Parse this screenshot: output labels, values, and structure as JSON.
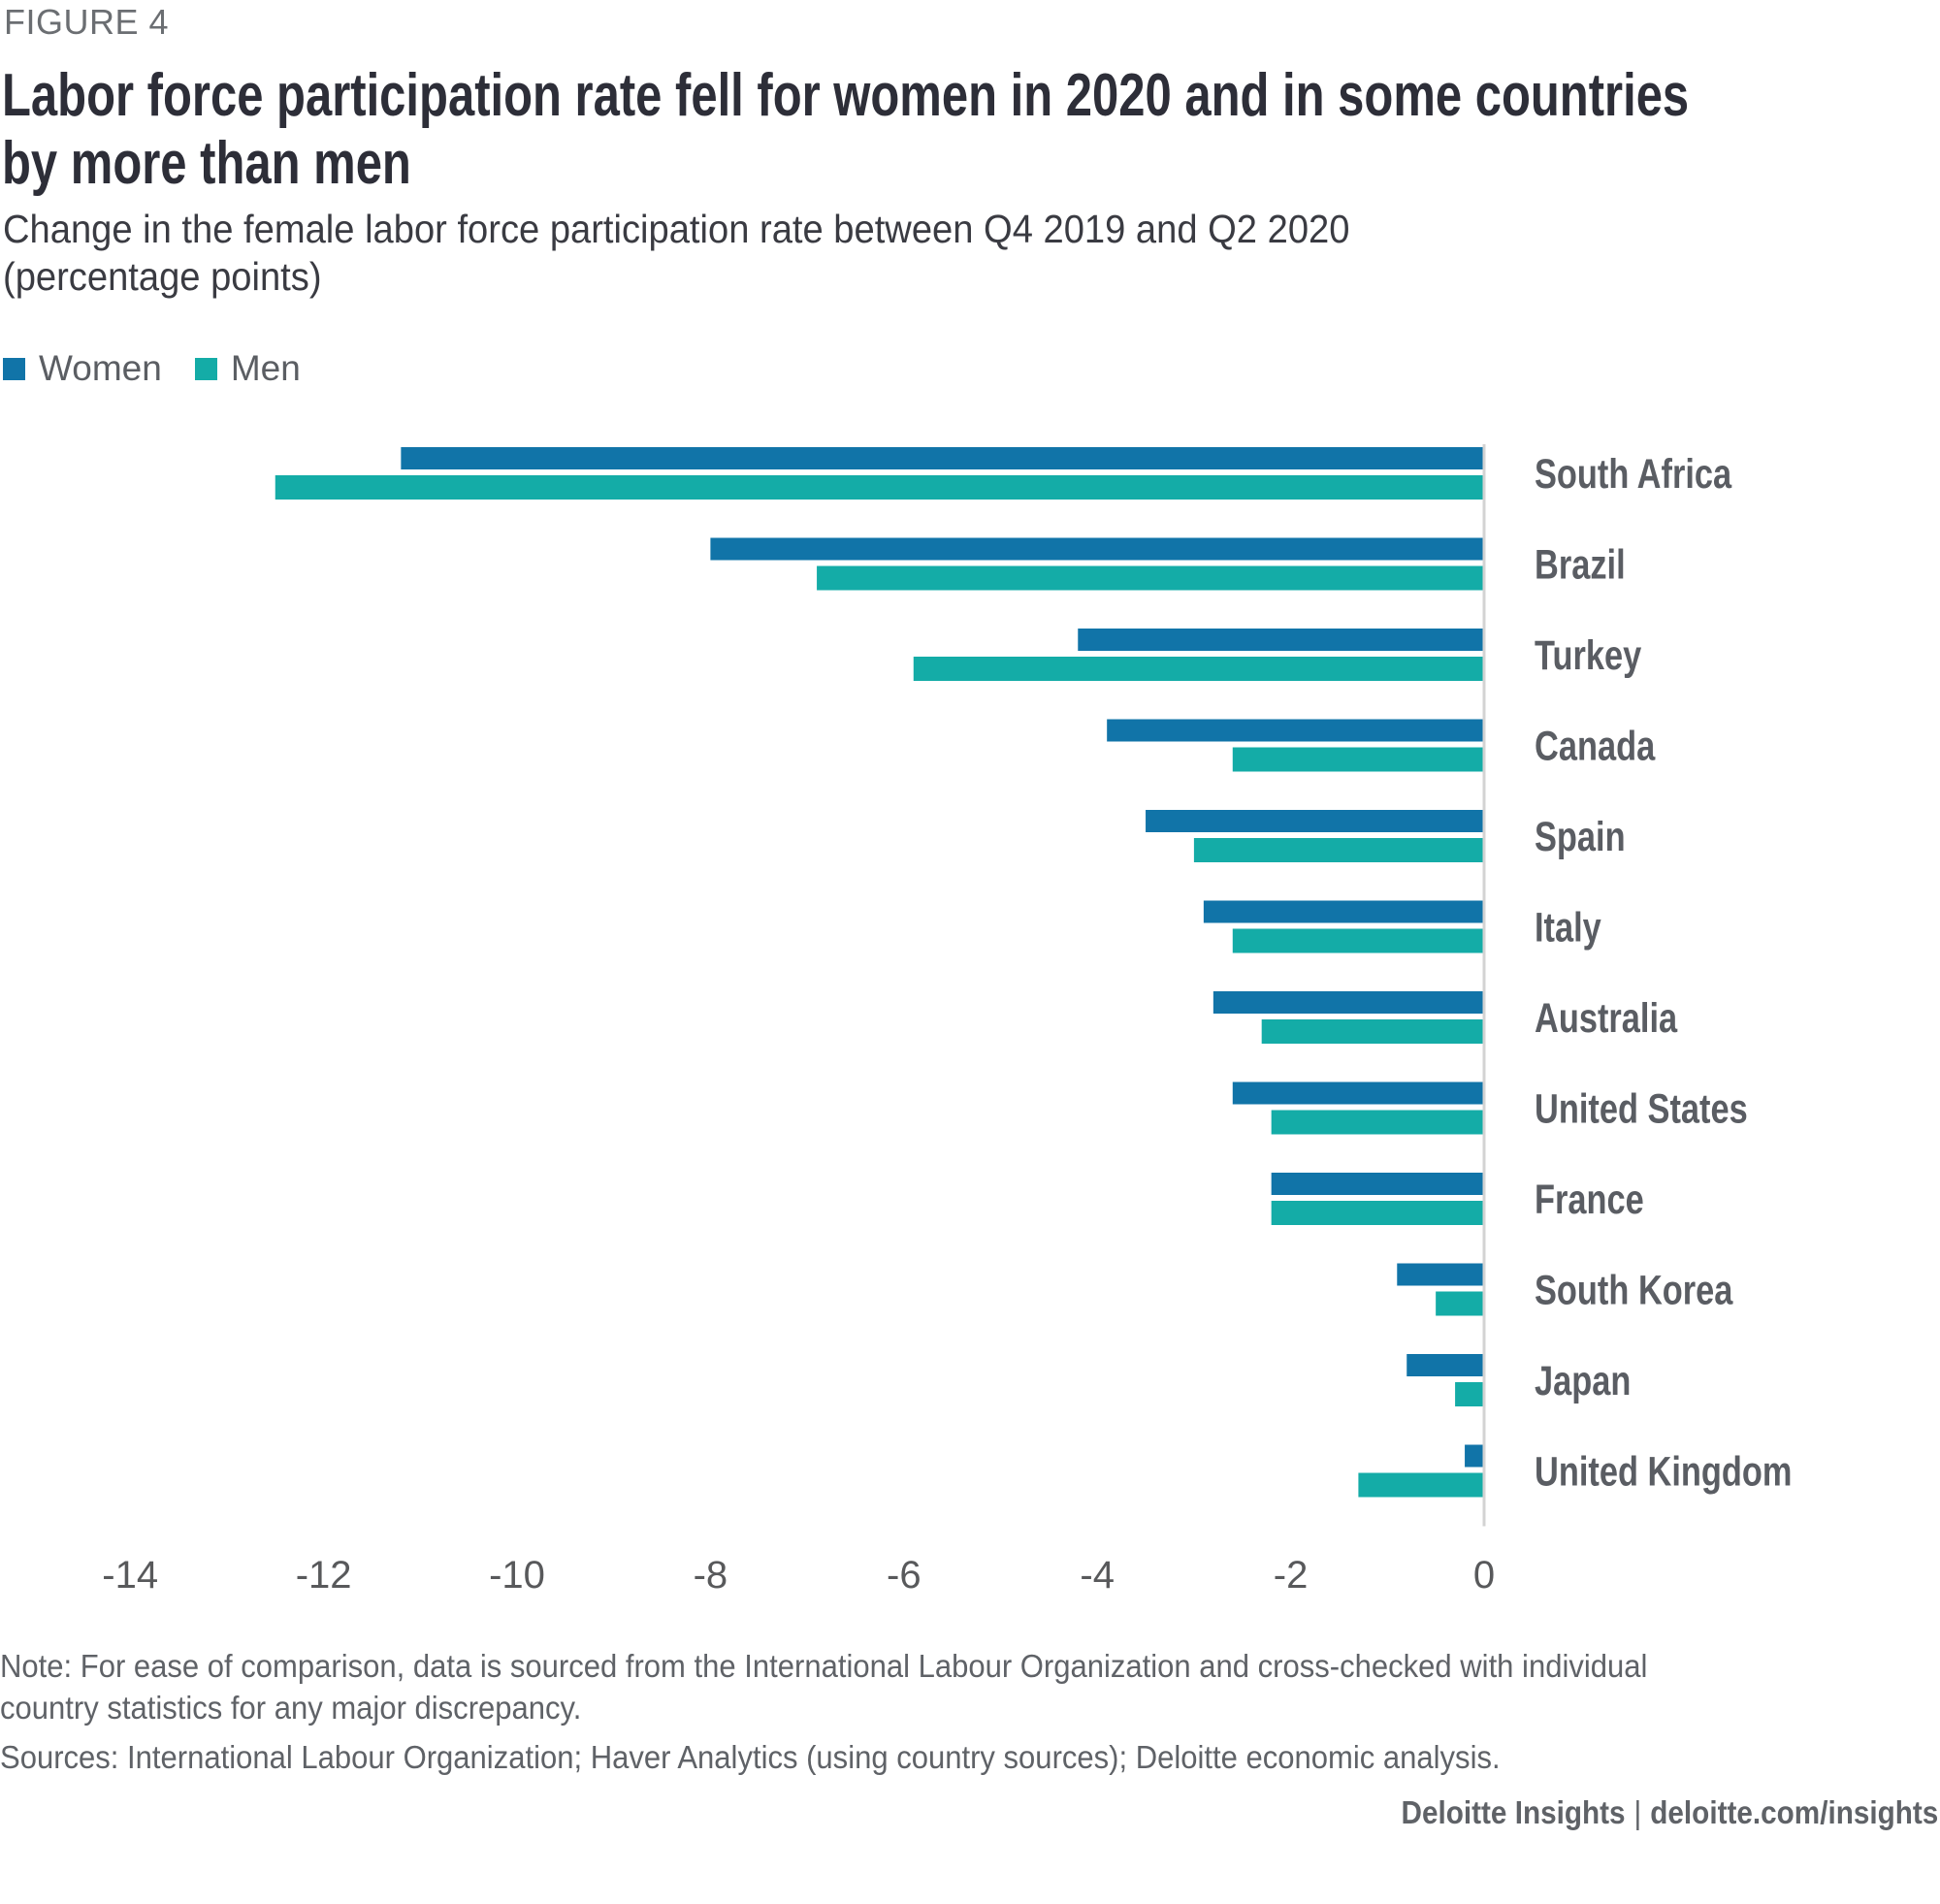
{
  "figure_label": "FIGURE 4",
  "title_lines": [
    "Labor force participation rate fell for women in 2020 and in some countries",
    "by more than men"
  ],
  "subtitle_lines": [
    "Change in the female labor force participation rate between Q4 2019 and Q2 2020",
    "(percentage points)"
  ],
  "legend": [
    {
      "label": "Women",
      "color": "#1174A8"
    },
    {
      "label": "Men",
      "color": "#14ACA7"
    }
  ],
  "chart_data": {
    "type": "bar",
    "orientation": "horizontal",
    "title": "Labor force participation rate fell for women in 2020 and in some countries by more than men",
    "subtitle": "Change in the female labor force participation rate between Q4 2019 and Q2 2020 (percentage points)",
    "categories": [
      "South Africa",
      "Brazil",
      "Turkey",
      "Canada",
      "Spain",
      "Italy",
      "Australia",
      "United States",
      "France",
      "South Korea",
      "Japan",
      "United Kingdom"
    ],
    "series": [
      {
        "name": "Women",
        "color": "#1174A8",
        "values": [
          -11.2,
          -8.0,
          -4.2,
          -3.9,
          -3.5,
          -2.9,
          -2.8,
          -2.6,
          -2.2,
          -0.9,
          -0.8,
          -0.2
        ]
      },
      {
        "name": "Men",
        "color": "#14ACA7",
        "values": [
          -12.5,
          -6.9,
          -5.9,
          -2.6,
          -3.0,
          -2.6,
          -2.3,
          -2.2,
          -2.2,
          -0.5,
          -0.3,
          -1.3
        ]
      }
    ],
    "xlabel": "",
    "ylabel": "",
    "xlim": [
      -14,
      0
    ],
    "xticks": [
      -14,
      -12,
      -10,
      -8,
      -6,
      -4,
      -2,
      0
    ],
    "xtick_labels": [
      "-14",
      "-12",
      "-10",
      "-8",
      "-6",
      "-4",
      "-2",
      "0"
    ],
    "grid": false,
    "legend_position": "top-left",
    "category_label_position": "right"
  },
  "note": "Note: For ease of comparison, data is sourced from the International Labour Organization and cross-checked with individual country statistics for any major discrepancy.",
  "sources": "Sources: International Labour Organization; Haver Analytics (using country sources); Deloitte economic analysis.",
  "credit": {
    "brand": "Deloitte Insights",
    "separator": "|",
    "url": "deloitte.com/insights"
  }
}
